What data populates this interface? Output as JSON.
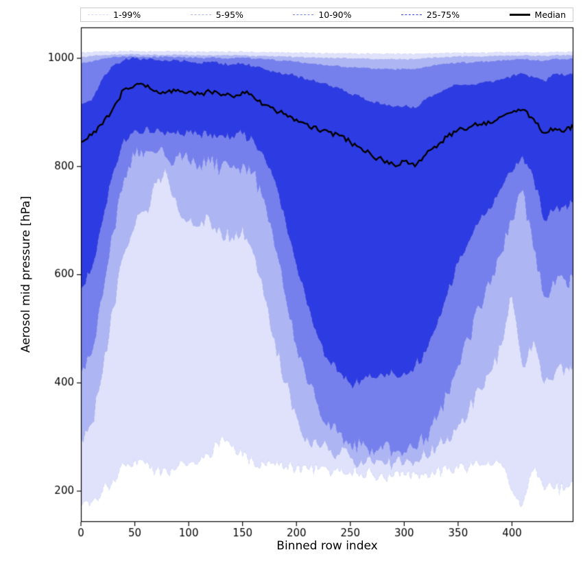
{
  "legend": {
    "entries": [
      {
        "label": "1-99%",
        "color": "#d8dbf8",
        "style": "dashed",
        "weight": 1.5
      },
      {
        "label": "5-95%",
        "color": "#b0b7f0",
        "style": "dashed",
        "weight": 1.5
      },
      {
        "label": "10-90%",
        "color": "#7a85ec",
        "style": "dashed",
        "weight": 1.5
      },
      {
        "label": "25-75%",
        "color": "#3945d6",
        "style": "dashed",
        "weight": 1.5
      },
      {
        "label": "Median",
        "color": "#000000",
        "style": "solid",
        "weight": 3
      }
    ]
  },
  "chart_data": {
    "type": "area",
    "title": "",
    "xlabel": "Binned row index",
    "ylabel": "Aerosol mid pressure [hPa]",
    "xlim": [
      0,
      457
    ],
    "ylim": [
      143,
      1057
    ],
    "xticks": [
      0,
      50,
      100,
      150,
      200,
      250,
      300,
      350,
      400
    ],
    "yticks": [
      200,
      400,
      600,
      800,
      1000
    ],
    "grid": false,
    "legend_position": "top-outside",
    "x": [
      0,
      10,
      20,
      30,
      40,
      50,
      60,
      70,
      80,
      90,
      100,
      110,
      120,
      130,
      140,
      150,
      160,
      170,
      180,
      190,
      200,
      210,
      220,
      230,
      240,
      250,
      260,
      270,
      280,
      290,
      300,
      310,
      320,
      330,
      340,
      350,
      360,
      370,
      380,
      390,
      400,
      410,
      420,
      430,
      440,
      450,
      457
    ],
    "series": [
      {
        "name": "p1",
        "jitter": 12,
        "values": [
          172,
          180,
          200,
          222,
          250,
          258,
          250,
          240,
          236,
          245,
          250,
          255,
          262,
          300,
          282,
          265,
          255,
          250,
          248,
          246,
          244,
          242,
          240,
          238,
          236,
          235,
          233,
          232,
          230,
          228,
          230,
          232,
          235,
          238,
          240,
          242,
          244,
          246,
          248,
          250,
          200,
          176,
          240,
          202,
          205,
          208,
          210
        ]
      },
      {
        "name": "p5",
        "jitter": 16,
        "values": [
          300,
          325,
          420,
          540,
          640,
          690,
          720,
          770,
          785,
          722,
          700,
          690,
          700,
          680,
          670,
          690,
          640,
          560,
          480,
          400,
          340,
          300,
          285,
          275,
          268,
          262,
          258,
          255,
          255,
          252,
          250,
          255,
          265,
          282,
          302,
          322,
          352,
          390,
          420,
          470,
          560,
          430,
          480,
          400,
          420,
          430,
          435
        ]
      },
      {
        "name": "p10",
        "jitter": 16,
        "values": [
          420,
          455,
          560,
          680,
          780,
          820,
          830,
          825,
          815,
          820,
          810,
          805,
          808,
          800,
          798,
          805,
          790,
          740,
          650,
          560,
          470,
          400,
          360,
          330,
          310,
          290,
          285,
          280,
          278,
          275,
          272,
          280,
          300,
          332,
          380,
          432,
          482,
          540,
          582,
          640,
          700,
          758,
          648,
          560,
          582,
          590,
          595
        ]
      },
      {
        "name": "p25",
        "jitter": 10,
        "values": [
          575,
          612,
          700,
          792,
          852,
          868,
          872,
          870,
          866,
          868,
          864,
          860,
          862,
          858,
          856,
          860,
          850,
          820,
          775,
          700,
          620,
          545,
          485,
          442,
          420,
          400,
          405,
          410,
          415,
          418,
          420,
          432,
          458,
          505,
          565,
          622,
          662,
          700,
          722,
          760,
          790,
          820,
          780,
          700,
          722,
          730,
          735
        ]
      },
      {
        "name": "median",
        "jitter": 5,
        "values": [
          845,
          858,
          878,
          908,
          943,
          950,
          947,
          940,
          938,
          942,
          938,
          934,
          938,
          931,
          930,
          938,
          929,
          914,
          904,
          897,
          887,
          879,
          867,
          864,
          857,
          845,
          834,
          820,
          812,
          804,
          810,
          800,
          822,
          835,
          855,
          868,
          872,
          878,
          880,
          892,
          900,
          905,
          888,
          862,
          870,
          868,
          872
        ]
      },
      {
        "name": "p75",
        "jitter": 3,
        "values": [
          915,
          922,
          962,
          986,
          996,
          1000,
          998,
          996,
          995,
          996,
          993,
          990,
          992,
          990,
          988,
          990,
          985,
          979,
          974,
          971,
          967,
          961,
          956,
          949,
          944,
          934,
          927,
          919,
          914,
          909,
          911,
          907,
          924,
          934,
          944,
          951,
          950,
          954,
          957,
          961,
          967,
          971,
          964,
          957,
          971,
          968,
          972
        ]
      },
      {
        "name": "p90",
        "jitter": 1.5,
        "values": [
          990,
          993,
          999,
          1002,
          1003,
          1003,
          1002,
          1002,
          1003,
          1002,
          1001,
          1000,
          1001,
          1000,
          1000,
          1001,
          999,
          998,
          996,
          995,
          993,
          990,
          988,
          986,
          985,
          983,
          982,
          980,
          980,
          979,
          980,
          979,
          984,
          987,
          990,
          992,
          991,
          993,
          994,
          995,
          997,
          998,
          996,
          995,
          999,
          998,
          1000
        ]
      },
      {
        "name": "p95",
        "jitter": 1,
        "values": [
          1002,
          1004,
          1005,
          1006,
          1006,
          1007,
          1006,
          1006,
          1006,
          1006,
          1005,
          1005,
          1005,
          1005,
          1005,
          1005,
          1004,
          1004,
          1003,
          1003,
          1002,
          1001,
          1001,
          1000,
          1000,
          999,
          999,
          998,
          998,
          998,
          998,
          998,
          1000,
          1001,
          1002,
          1003,
          1003,
          1003,
          1004,
          1004,
          1005,
          1005,
          1004,
          1004,
          1005,
          1005,
          1006
        ]
      },
      {
        "name": "p99",
        "jitter": 1,
        "values": [
          1010,
          1011,
          1012,
          1012,
          1013,
          1013,
          1012,
          1012,
          1013,
          1012,
          1012,
          1012,
          1012,
          1012,
          1012,
          1012,
          1011,
          1011,
          1011,
          1010,
          1010,
          1010,
          1009,
          1009,
          1009,
          1009,
          1008,
          1008,
          1008,
          1008,
          1008,
          1008,
          1009,
          1009,
          1010,
          1010,
          1010,
          1010,
          1010,
          1011,
          1011,
          1011,
          1010,
          1010,
          1011,
          1011,
          1012
        ]
      }
    ],
    "bands": [
      {
        "label": "1-99%",
        "lower": "p1",
        "upper": "p99",
        "fill": "#dfe2fa",
        "edge": "#d8dbf8"
      },
      {
        "label": "5-95%",
        "lower": "p5",
        "upper": "p95",
        "fill": "#aeb5f3",
        "edge": "#b0b7f0"
      },
      {
        "label": "10-90%",
        "lower": "p10",
        "upper": "p90",
        "fill": "#7680ec",
        "edge": "#7a85ec"
      },
      {
        "label": "25-75%",
        "lower": "p25",
        "upper": "p75",
        "fill": "#2d3be3",
        "edge": "#3945d6"
      }
    ],
    "median_series": "median",
    "median_color": "#000000",
    "axis_color": "#000000"
  }
}
